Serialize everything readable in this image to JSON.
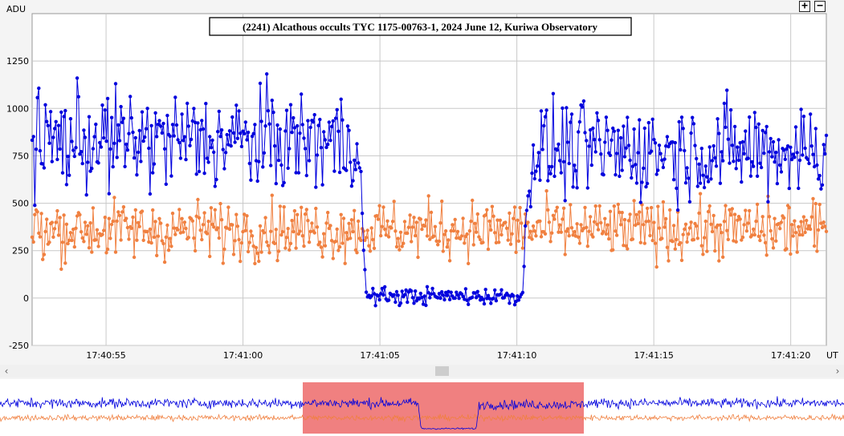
{
  "chart_data": {
    "type": "line",
    "title": "(2241) Alcathous occults TYC 1175-00763-1, 2024 June 12, Kuriwa Observatory",
    "ylabel": "ADU",
    "xlabel": "UT",
    "ylim": [
      -250,
      1500
    ],
    "yticks": [
      -250,
      0,
      250,
      500,
      750,
      1000,
      1250
    ],
    "xlim": [
      "17:40:52.3",
      "17:41:21.3"
    ],
    "xticks": [
      "17:40:55",
      "17:41:00",
      "17:41:05",
      "17:41:10",
      "17:41:15",
      "17:41:20"
    ],
    "grid": true,
    "legend": "none",
    "series": [
      {
        "color": "#0000dd",
        "marker": "circle",
        "profile": [
          {
            "t": "17:40:52.3",
            "mean": 830,
            "noise": 130
          },
          {
            "t": "17:41:04.2",
            "mean": 830,
            "noise": 130
          },
          {
            "t": "17:41:04.5",
            "mean": 10,
            "noise": 22
          },
          {
            "t": "17:41:10.2",
            "mean": 10,
            "noise": 22
          },
          {
            "t": "17:41:10.5",
            "mean": 780,
            "noise": 125
          },
          {
            "t": "17:41:21.3",
            "mean": 780,
            "noise": 125
          }
        ]
      },
      {
        "color": "#f08040",
        "marker": "circle",
        "profile": [
          {
            "t": "17:40:52.3",
            "mean": 360,
            "noise": 75
          },
          {
            "t": "17:41:21.3",
            "mean": 360,
            "noise": 75
          }
        ]
      }
    ],
    "navigator": {
      "window_start": "17:40:52.3",
      "window_end": "17:41:21.3",
      "highlight_color": "#f08080"
    }
  }
}
